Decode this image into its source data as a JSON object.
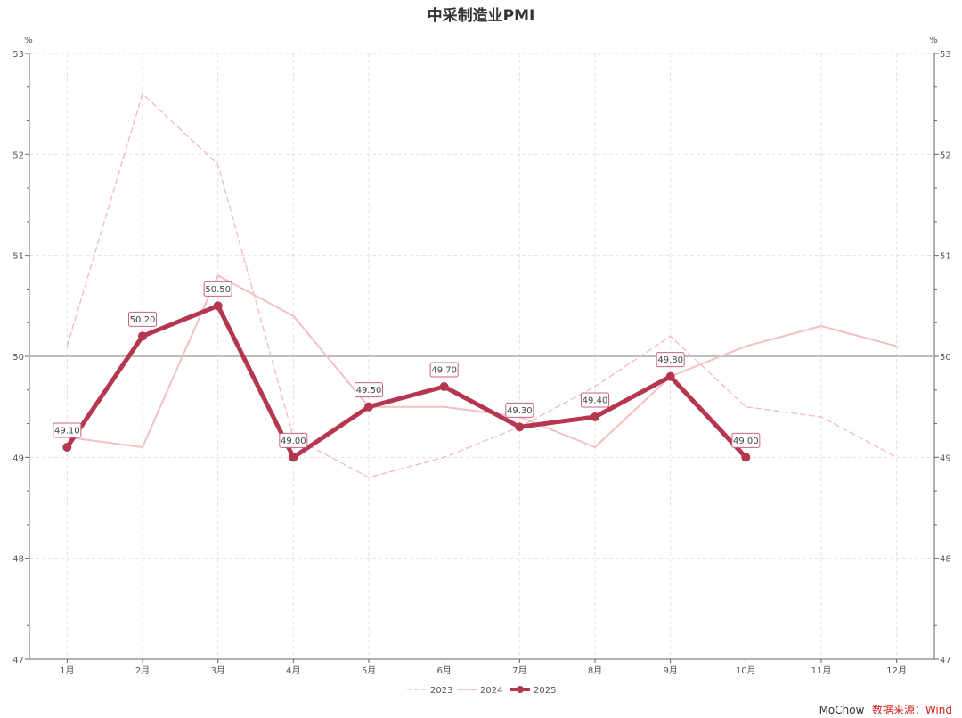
{
  "chart_data": {
    "type": "line",
    "title": "中采制造业PMI",
    "ylabel_left": "%",
    "ylabel_right": "%",
    "ylim": [
      47,
      53
    ],
    "yticks": [
      47,
      48,
      49,
      50,
      51,
      52,
      53
    ],
    "categories": [
      "1月",
      "2月",
      "3月",
      "4月",
      "5月",
      "6月",
      "7月",
      "8月",
      "9月",
      "10月",
      "11月",
      "12月"
    ],
    "reference_line": 50,
    "grid": true,
    "legend_position": "bottom-center",
    "series": [
      {
        "name": "2023",
        "style": "dashed",
        "color": "#f4b8c0",
        "values": [
          50.1,
          52.6,
          51.9,
          49.2,
          48.8,
          49.0,
          49.3,
          49.7,
          50.2,
          49.5,
          49.4,
          49.0
        ]
      },
      {
        "name": "2024",
        "style": "solid",
        "color": "#f2c0c0",
        "values": [
          49.2,
          49.1,
          50.8,
          50.4,
          49.5,
          49.5,
          49.4,
          49.1,
          49.8,
          50.1,
          50.3,
          50.1
        ]
      },
      {
        "name": "2025",
        "style": "solid-markers",
        "color": "#b5364f",
        "values": [
          49.1,
          50.2,
          50.5,
          49.0,
          49.5,
          49.7,
          49.3,
          49.4,
          49.8,
          49.0,
          null,
          null
        ],
        "data_labels": [
          "49.10",
          "50.20",
          "50.50",
          "49.00",
          "49.50",
          "49.70",
          "49.30",
          "49.40",
          "49.80",
          "49.00"
        ]
      }
    ]
  },
  "footer": {
    "author": "MoChow",
    "source": "数据来源：Wind"
  }
}
